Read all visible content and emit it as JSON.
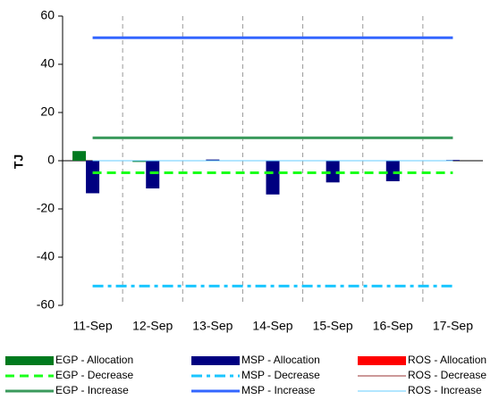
{
  "chart_data": {
    "type": "bar",
    "y_label": "TJ",
    "categories": [
      "11-Sep",
      "12-Sep",
      "13-Sep",
      "14-Sep",
      "15-Sep",
      "16-Sep",
      "17-Sep"
    ],
    "ylim": [
      -60,
      60
    ],
    "yticks": [
      -60,
      -40,
      -20,
      0,
      20,
      40,
      60
    ],
    "vertical_grid": true,
    "series": [
      {
        "name": "EGP - Allocation",
        "kind": "bar",
        "color": "#007a1e",
        "values": [
          4,
          -0.5,
          0,
          0,
          0,
          0,
          0
        ]
      },
      {
        "name": "EGP - Decrease",
        "kind": "line",
        "line_style": "dash",
        "line_width": 3,
        "color": "#1aff1a",
        "values": [
          -5,
          -5,
          -5,
          -5,
          -5,
          -5,
          -5
        ]
      },
      {
        "name": "EGP - Increase",
        "kind": "line",
        "line_style": "solid",
        "line_width": 3,
        "color": "#3a9a5c",
        "values": [
          9.5,
          9.5,
          9.5,
          9.5,
          9.5,
          9.5,
          9.5
        ]
      },
      {
        "name": "MSP - Allocation",
        "kind": "bar",
        "color": "#000080",
        "values": [
          -13.5,
          -11.5,
          0.5,
          -14,
          -9,
          -8.5,
          0.3
        ]
      },
      {
        "name": "MSP - Decrease",
        "kind": "line",
        "line_style": "dashdot",
        "line_width": 3,
        "color": "#1ac6ff",
        "values": [
          -52,
          -52,
          -52,
          -52,
          -52,
          -52,
          -52
        ]
      },
      {
        "name": "MSP - Increase",
        "kind": "line",
        "line_style": "solid",
        "line_width": 3,
        "color": "#3366ff",
        "values": [
          51,
          51,
          51,
          51,
          51,
          51,
          51
        ]
      },
      {
        "name": "ROS - Allocation",
        "kind": "bar",
        "color": "#ff0000",
        "values": [
          0,
          0,
          0,
          0,
          0,
          0,
          0
        ]
      },
      {
        "name": "ROS - Decrease",
        "kind": "line",
        "line_style": "solid",
        "line_width": 1,
        "color": "#993333",
        "values": [
          0,
          0,
          0,
          0,
          0,
          0,
          0
        ]
      },
      {
        "name": "ROS - Increase",
        "kind": "line",
        "line_style": "solid",
        "line_width": 1,
        "color": "#66ccff",
        "values": [
          0,
          0,
          0,
          0,
          0,
          0,
          0
        ]
      }
    ]
  }
}
